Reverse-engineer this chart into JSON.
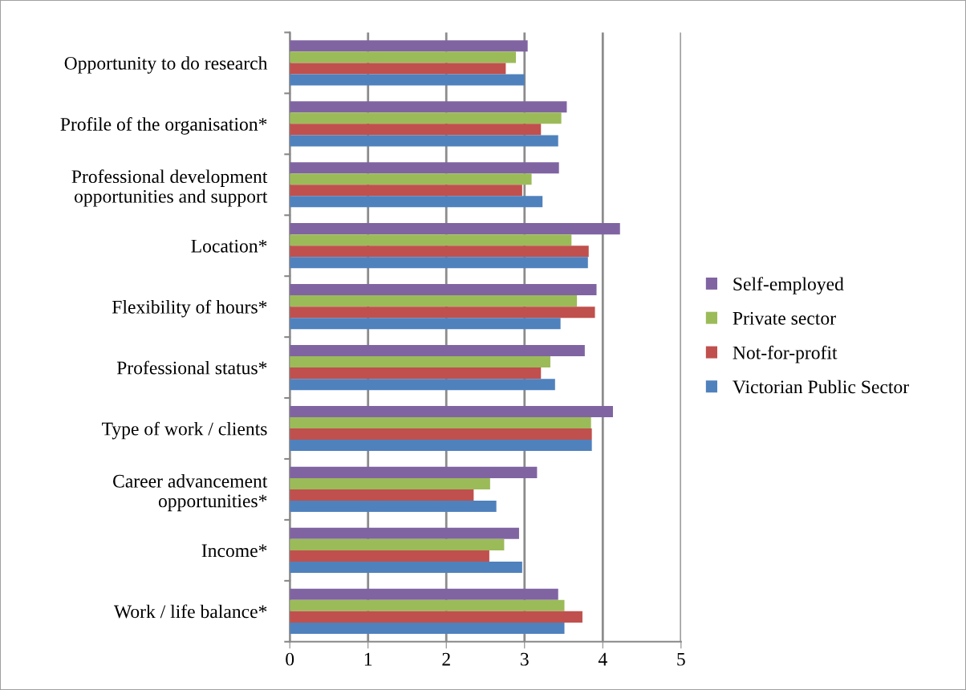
{
  "chart_data": {
    "type": "bar",
    "orientation": "horizontal",
    "categories": [
      "Opportunity to do research",
      "Profile of the organisation*",
      "Professional development\nopportunities and support",
      "Location*",
      "Flexibility of hours*",
      "Professional status*",
      "Type of work / clients",
      "Career advancement\nopportunities*",
      "Income*",
      "Work / life balance*"
    ],
    "series": [
      {
        "name": "Self-employed",
        "color": "#8064a2",
        "values": [
          3.04,
          3.54,
          3.44,
          4.22,
          3.92,
          3.77,
          4.13,
          3.16,
          2.93,
          3.43
        ]
      },
      {
        "name": "Private sector",
        "color": "#9bbb59",
        "values": [
          2.89,
          3.47,
          3.09,
          3.6,
          3.67,
          3.33,
          3.85,
          2.56,
          2.74,
          3.51
        ]
      },
      {
        "name": "Not-for-profit",
        "color": "#c0504d",
        "values": [
          2.76,
          3.21,
          2.97,
          3.82,
          3.9,
          3.21,
          3.86,
          2.35,
          2.55,
          3.74
        ]
      },
      {
        "name": "Victorian Public Sector",
        "color": "#4f81bd",
        "values": [
          3.0,
          3.43,
          3.23,
          3.81,
          3.46,
          3.39,
          3.86,
          2.64,
          2.97,
          3.51
        ]
      }
    ],
    "xlim": [
      0,
      5
    ],
    "xticks": [
      0,
      1,
      2,
      3,
      4,
      5
    ],
    "grid": "x",
    "legend": "right"
  }
}
